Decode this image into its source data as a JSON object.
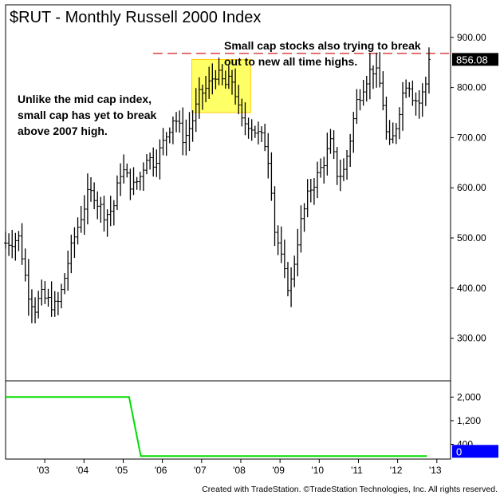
{
  "chart_data": {
    "type": "bar",
    "style": "ohlc-monthly",
    "title": "$RUT - Monthly  Russell 2000 Index",
    "footer": "Created with TradeStation. ©TradeStation Technologies, Inc. All rights reserved.",
    "annotations": {
      "top_right": [
        "Small cap stocks also trying to break",
        "out to new all time highs."
      ],
      "left": [
        "Unlike the mid cap index,",
        "small cap has yet to break",
        "above 2007 high."
      ]
    },
    "last_value_label": "856.08",
    "last_value": 856.08,
    "resistance_level": 868,
    "highlight_box": {
      "x_start": 2006.75,
      "x_end": 2008.25,
      "y_low": 750,
      "y_high": 856
    },
    "x_ticks": [
      {
        "label": "'03",
        "x": 2003.0
      },
      {
        "label": "'04",
        "x": 2004.0
      },
      {
        "label": "'05",
        "x": 2005.0
      },
      {
        "label": "'06",
        "x": 2006.0
      },
      {
        "label": "'07",
        "x": 2007.0
      },
      {
        "label": "'08",
        "x": 2008.0
      },
      {
        "label": "'09",
        "x": 2009.0
      },
      {
        "label": "'10",
        "x": 2010.0
      },
      {
        "label": "'11",
        "x": 2011.0
      },
      {
        "label": "'12",
        "x": 2012.0
      },
      {
        "label": "'13",
        "x": 2013.0
      }
    ],
    "xlim": [
      2002.0,
      2013.35
    ],
    "ylim": [
      215,
      965
    ],
    "y_ticks": [
      {
        "label": "300.00",
        "v": 300
      },
      {
        "label": "400.00",
        "v": 400
      },
      {
        "label": "500.00",
        "v": 500
      },
      {
        "label": "600.00",
        "v": 600
      },
      {
        "label": "700.00",
        "v": 700
      },
      {
        "label": "800.00",
        "v": 800
      },
      {
        "label": "900.00",
        "v": 900
      }
    ],
    "bar_anchors": [
      [
        2002.0,
        490
      ],
      [
        2002.35,
        500
      ],
      [
        2002.5,
        425
      ],
      [
        2002.6,
        385
      ],
      [
        2002.75,
        360
      ],
      [
        2002.9,
        385
      ],
      [
        2003.15,
        370
      ],
      [
        2003.3,
        360
      ],
      [
        2003.45,
        400
      ],
      [
        2003.6,
        455
      ],
      [
        2003.75,
        500
      ],
      [
        2003.95,
        550
      ],
      [
        2004.1,
        585
      ],
      [
        2004.25,
        590
      ],
      [
        2004.35,
        570
      ],
      [
        2004.55,
        545
      ],
      [
        2004.75,
        560
      ],
      [
        2004.95,
        640
      ],
      [
        2005.1,
        620
      ],
      [
        2005.25,
        600
      ],
      [
        2005.45,
        625
      ],
      [
        2005.6,
        665
      ],
      [
        2005.75,
        650
      ],
      [
        2005.95,
        675
      ],
      [
        2006.1,
        705
      ],
      [
        2006.3,
        745
      ],
      [
        2006.45,
        715
      ],
      [
        2006.55,
        695
      ],
      [
        2006.75,
        730
      ],
      [
        2006.95,
        785
      ],
      [
        2007.15,
        800
      ],
      [
        2007.35,
        830
      ],
      [
        2007.5,
        815
      ],
      [
        2007.6,
        805
      ],
      [
        2007.8,
        815
      ],
      [
        2008.0,
        730
      ],
      [
        2008.2,
        730
      ],
      [
        2008.35,
        715
      ],
      [
        2008.5,
        700
      ],
      [
        2008.6,
        695
      ],
      [
        2008.75,
        640
      ],
      [
        2008.85,
        520
      ],
      [
        2008.95,
        490
      ],
      [
        2009.1,
        430
      ],
      [
        2009.25,
        395
      ],
      [
        2009.35,
        445
      ],
      [
        2009.5,
        520
      ],
      [
        2009.75,
        595
      ],
      [
        2010.0,
        630
      ],
      [
        2010.15,
        660
      ],
      [
        2010.3,
        690
      ],
      [
        2010.45,
        630
      ],
      [
        2010.6,
        625
      ],
      [
        2010.75,
        680
      ],
      [
        2010.95,
        770
      ],
      [
        2011.15,
        810
      ],
      [
        2011.35,
        840
      ],
      [
        2011.5,
        820
      ],
      [
        2011.6,
        790
      ],
      [
        2011.75,
        680
      ],
      [
        2011.85,
        690
      ],
      [
        2011.95,
        720
      ],
      [
        2012.1,
        780
      ],
      [
        2012.25,
        820
      ],
      [
        2012.4,
        780
      ],
      [
        2012.55,
        770
      ],
      [
        2012.7,
        800
      ],
      [
        2012.75,
        825
      ],
      [
        2012.8,
        848
      ]
    ],
    "sub_panel": {
      "type": "line",
      "color": "#00dd00",
      "points": [
        [
          2002.0,
          2000
        ],
        [
          2005.15,
          2000
        ],
        [
          2005.45,
          0
        ],
        [
          2012.75,
          0
        ]
      ],
      "ylim": [
        -100,
        2550
      ],
      "y_ticks": [
        {
          "label": "2,000",
          "v": 2000
        },
        {
          "label": "1,200",
          "v": 1200
        },
        {
          "label": "400",
          "v": 400
        }
      ],
      "last_value_label": "0",
      "last_value": 0
    },
    "colors": {
      "bars": "#000000",
      "resistance": "#d00000",
      "highlight_fill": "#ffff66",
      "highlight_stroke": "#ffcc00",
      "frame": "#000000",
      "value_box": "#000000",
      "sub_value_box": "#0000ff"
    }
  }
}
